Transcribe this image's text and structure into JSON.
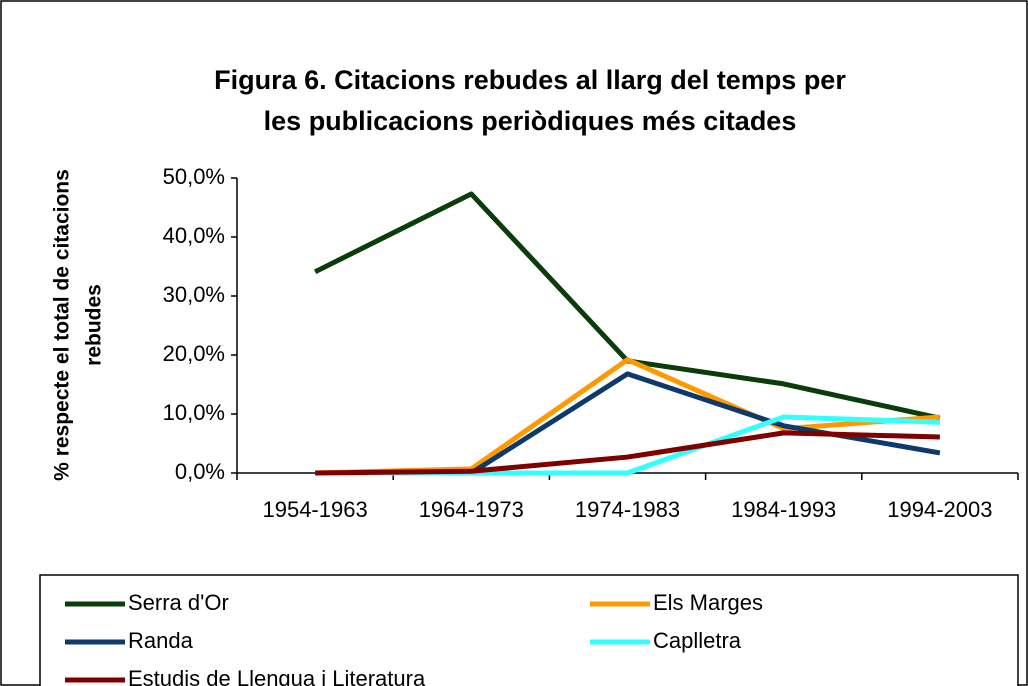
{
  "chart_data": {
    "type": "line",
    "title": [
      "Figura 6. Citacions rebudes al llarg del temps per",
      "les publicacions periòdiques més citades"
    ],
    "y_label": [
      "% respecte el total de citacions",
      "rebudes"
    ],
    "categories": [
      "1954-1963",
      "1964-1973",
      "1974-1983",
      "1984-1993",
      "1994-2003"
    ],
    "series": [
      {
        "name": "Serra d'Or",
        "color": "#0a3d0a",
        "values": [
          34.1,
          47.3,
          19.0,
          15.1,
          9.3
        ]
      },
      {
        "name": "Els Marges",
        "color": "#ff9900",
        "values": [
          0,
          0.7,
          19.2,
          7.5,
          9.5
        ]
      },
      {
        "name": "Randa",
        "color": "#0d3a6b",
        "values": [
          0,
          0,
          16.8,
          8.0,
          3.4
        ]
      },
      {
        "name": "Caplletra",
        "color": "#33ffff",
        "values": [
          0,
          0,
          0,
          9.5,
          8.6
        ]
      },
      {
        "name": "Estudis de Llengua i Literatura",
        "color": "#800000",
        "values": [
          0,
          0.3,
          2.7,
          6.8,
          6.1
        ]
      }
    ],
    "ylim": [
      0,
      50
    ],
    "yticks": [
      {
        "value": 0,
        "label": "0,0%"
      },
      {
        "value": 10,
        "label": "10,0%"
      },
      {
        "value": 20,
        "label": "20,0%"
      },
      {
        "value": 30,
        "label": "30,0%"
      },
      {
        "value": 40,
        "label": "40,0%"
      },
      {
        "value": 50,
        "label": "50,0%"
      }
    ],
    "grid": false,
    "legend": "bottom"
  }
}
